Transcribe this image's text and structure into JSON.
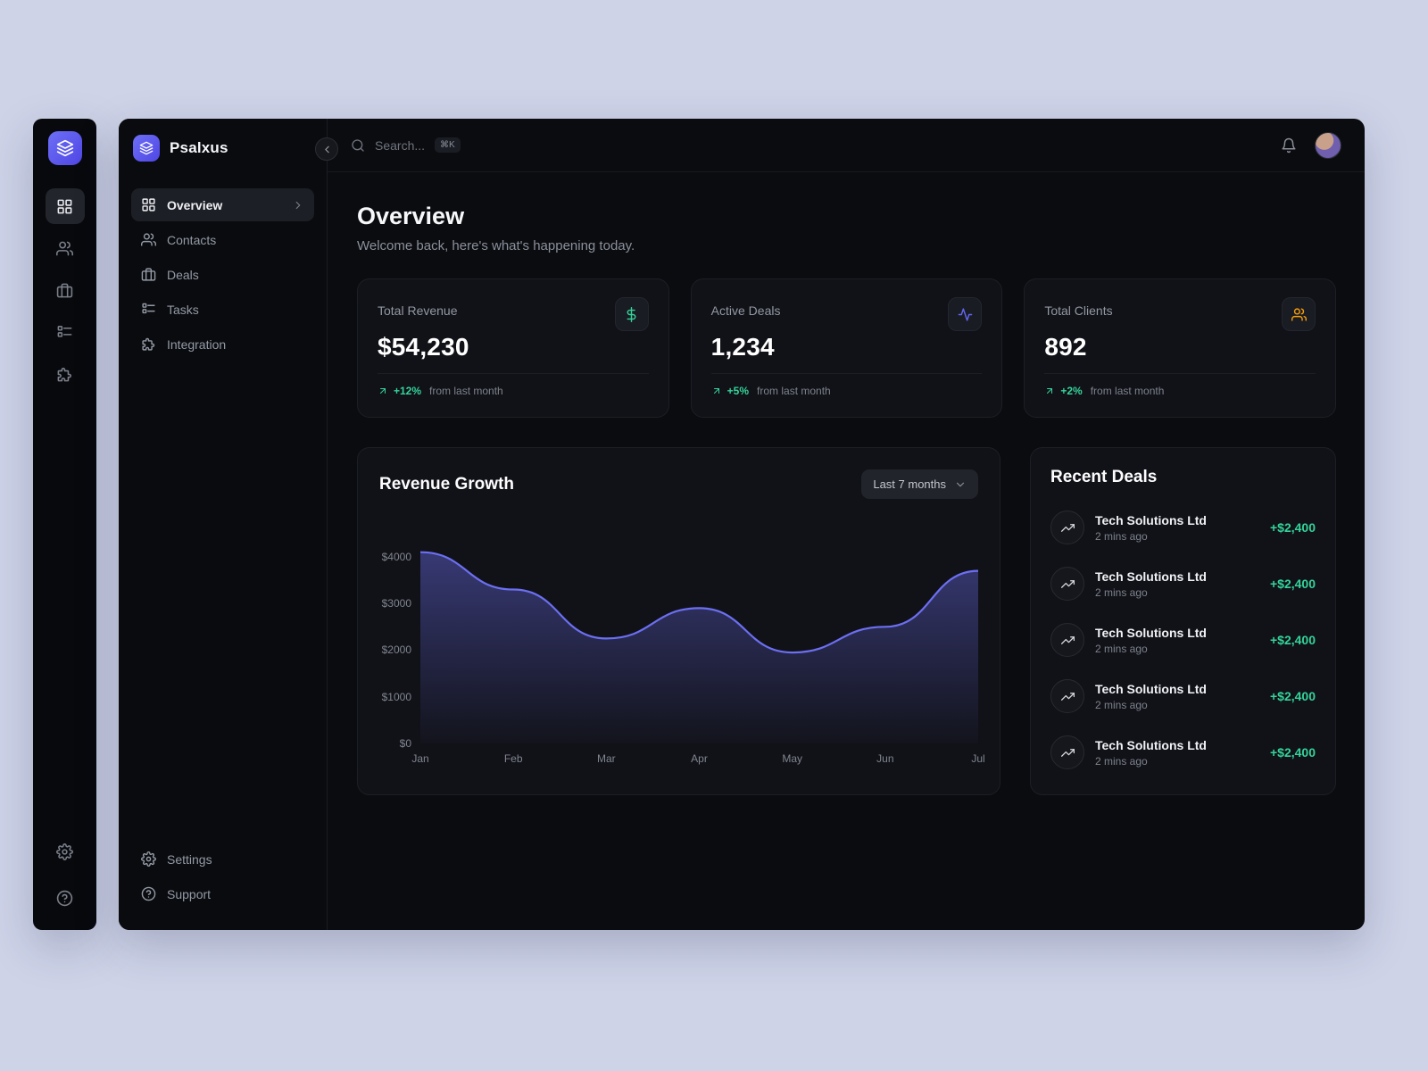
{
  "app": {
    "brand": "Psalxus"
  },
  "sidebar": {
    "brand": "Psalxus",
    "nav": [
      {
        "label": "Overview",
        "active": true
      },
      {
        "label": "Contacts",
        "active": false
      },
      {
        "label": "Deals",
        "active": false
      },
      {
        "label": "Tasks",
        "active": false
      },
      {
        "label": "Integration",
        "active": false
      }
    ],
    "footer": [
      {
        "label": "Settings"
      },
      {
        "label": "Support"
      }
    ]
  },
  "topbar": {
    "search_placeholder": "Search...",
    "search_shortcut": "⌘K"
  },
  "page": {
    "title": "Overview",
    "subtitle": "Welcome back, here's what's happening today."
  },
  "stats": [
    {
      "label": "Total Revenue",
      "value": "$54,230",
      "delta": "+12%",
      "note": "from last month",
      "icon": "dollar-icon",
      "accent": "#34d399"
    },
    {
      "label": "Active Deals",
      "value": "1,234",
      "delta": "+5%",
      "note": "from last month",
      "icon": "activity-icon",
      "accent": "#6366f1"
    },
    {
      "label": "Total Clients",
      "value": "892",
      "delta": "+2%",
      "note": "from last month",
      "icon": "users-icon",
      "accent": "#f59e0b"
    }
  ],
  "revenue_card": {
    "title": "Revenue Growth",
    "range": "Last 7 months"
  },
  "chart_data": {
    "type": "area",
    "title": "Revenue Growth",
    "categories": [
      "Jan",
      "Feb",
      "Mar",
      "Apr",
      "May",
      "Jun",
      "Jul"
    ],
    "values": [
      4100,
      3300,
      2250,
      2900,
      1950,
      2500,
      3700
    ],
    "yticks": [
      0,
      1000,
      2000,
      3000,
      4000
    ],
    "ytick_labels": [
      "$0",
      "$1000",
      "$2000",
      "$3000",
      "$4000"
    ],
    "ylim": [
      0,
      4400
    ],
    "xlabel": "",
    "ylabel": "",
    "grid": false,
    "legend": false,
    "line_color": "#6c6ff2"
  },
  "recent_deals": {
    "title": "Recent Deals",
    "items": [
      {
        "name": "Tech Solutions Ltd",
        "time": "2 mins ago",
        "amount": "+$2,400"
      },
      {
        "name": "Tech Solutions Ltd",
        "time": "2 mins ago",
        "amount": "+$2,400"
      },
      {
        "name": "Tech Solutions Ltd",
        "time": "2 mins ago",
        "amount": "+$2,400"
      },
      {
        "name": "Tech Solutions Ltd",
        "time": "2 mins ago",
        "amount": "+$2,400"
      },
      {
        "name": "Tech Solutions Ltd",
        "time": "2 mins ago",
        "amount": "+$2,400"
      }
    ]
  },
  "theme": {
    "accent_indigo": "#6366f1",
    "positive_green": "#34d399",
    "warning_orange": "#f59e0b",
    "canvas": "#ced3e8",
    "panel": "#0b0c10"
  }
}
